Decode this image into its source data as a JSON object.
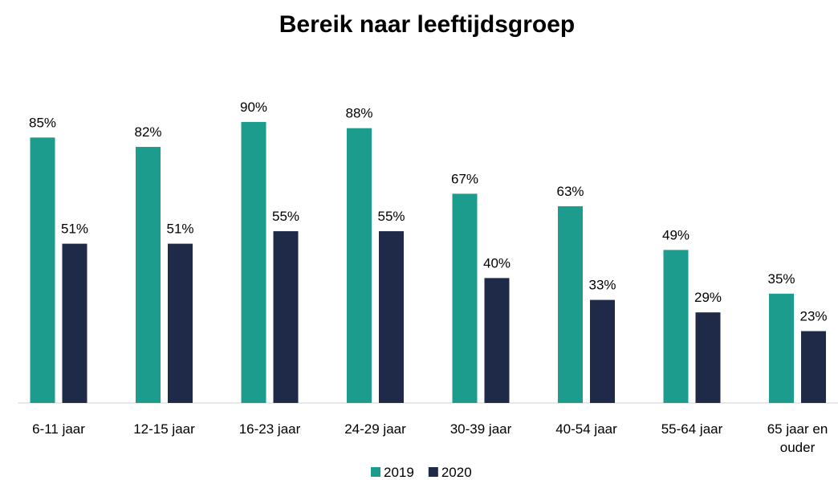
{
  "chart_data": {
    "type": "bar",
    "title": "Bereik naar leeftijdsgroep",
    "categories": [
      "6-11 jaar",
      "12-15 jaar",
      "16-23 jaar",
      "24-29 jaar",
      "30-39 jaar",
      "40-54 jaar",
      "55-64 jaar",
      "65 jaar en ouder"
    ],
    "series": [
      {
        "name": "2019",
        "color": "#1c9c8c",
        "values": [
          85,
          82,
          90,
          88,
          67,
          63,
          49,
          35
        ],
        "value_labels": [
          "85%",
          "82%",
          "90%",
          "88%",
          "67%",
          "63%",
          "49%",
          "35%"
        ]
      },
      {
        "name": "2020",
        "color": "#1f2a48",
        "values": [
          51,
          51,
          55,
          55,
          40,
          33,
          29,
          23
        ],
        "value_labels": [
          "51%",
          "51%",
          "55%",
          "55%",
          "40%",
          "33%",
          "29%",
          "23%"
        ]
      }
    ],
    "ylim": [
      0,
      100
    ],
    "grid": false,
    "legend": "bottom"
  }
}
